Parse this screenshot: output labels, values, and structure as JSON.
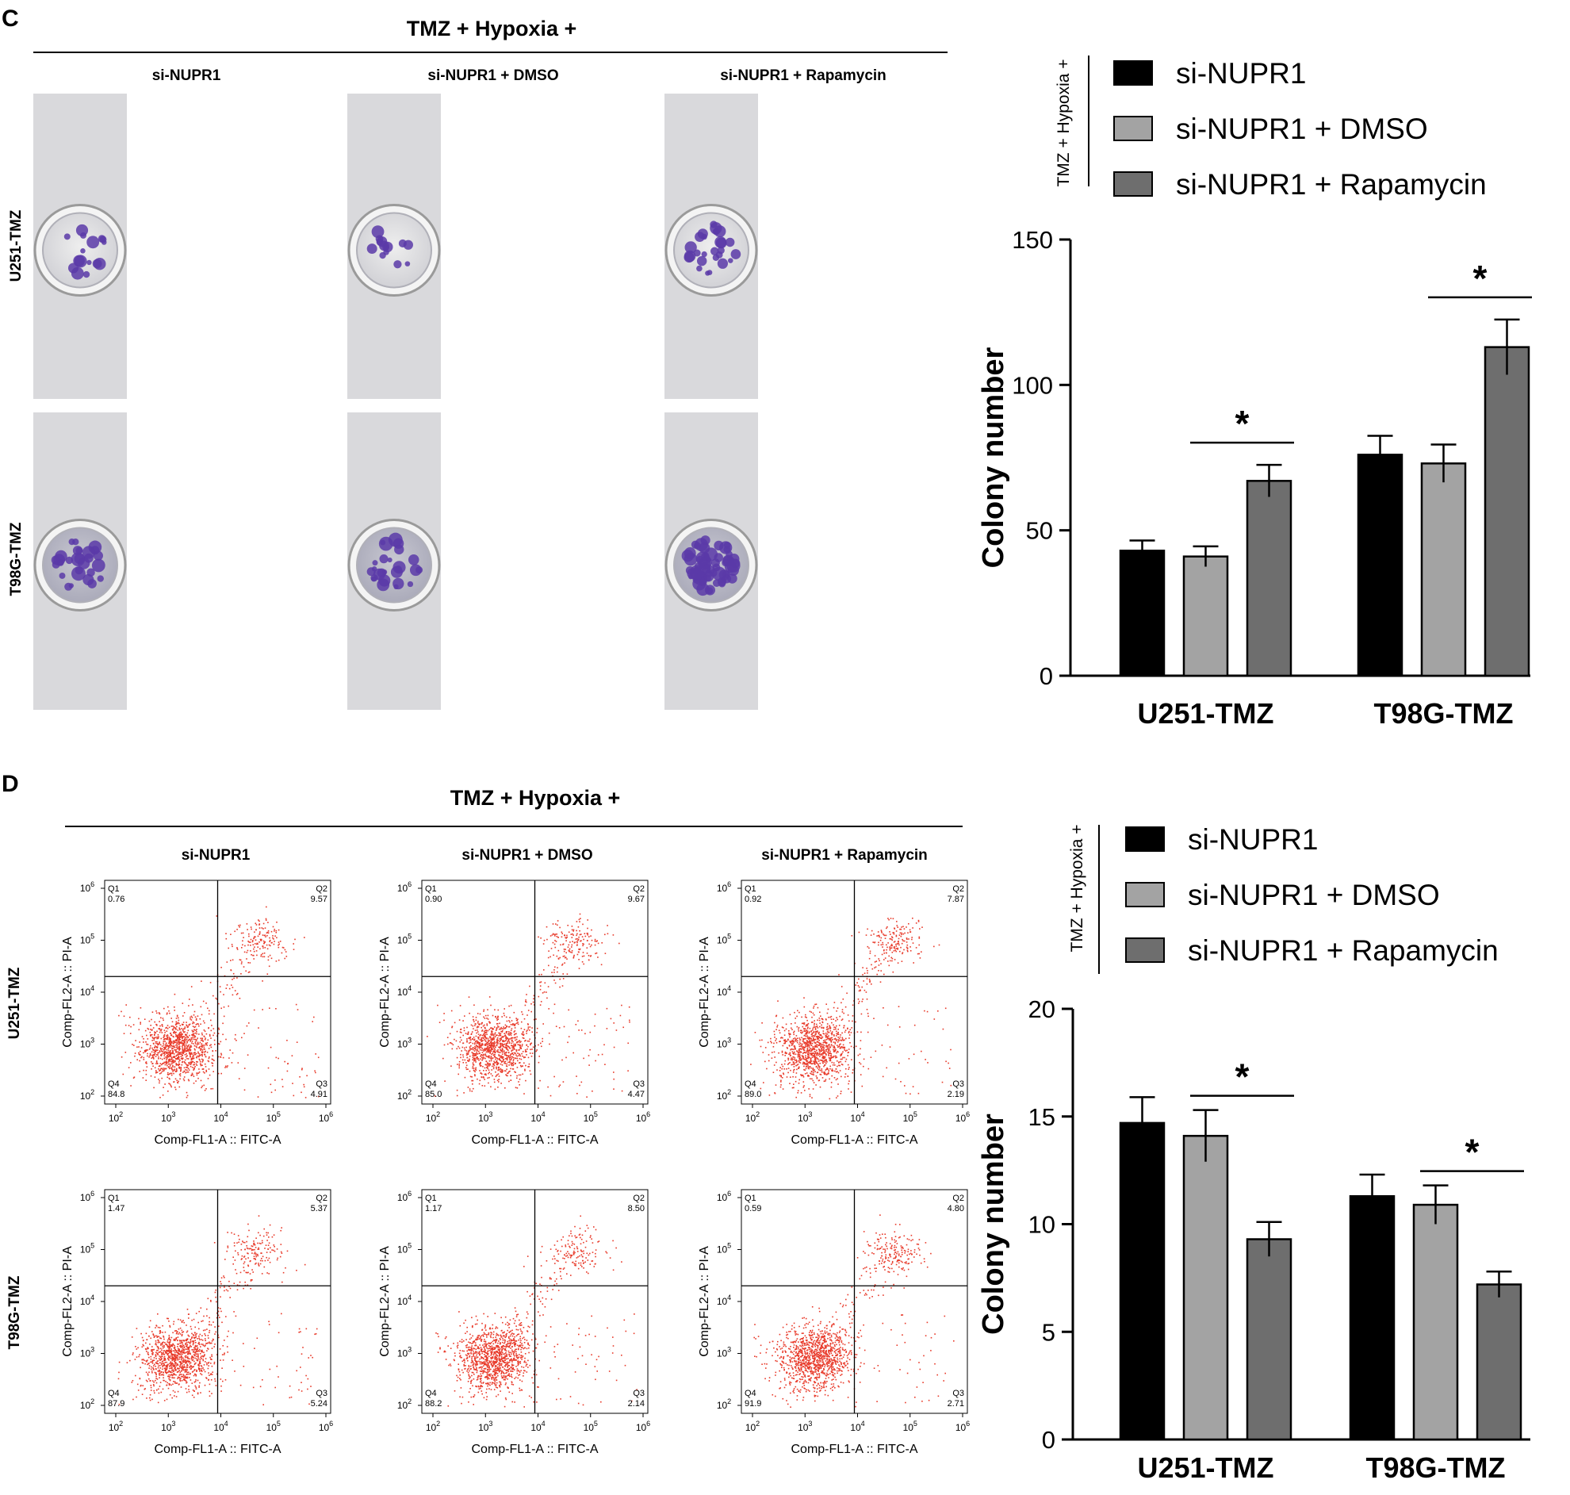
{
  "panelC": {
    "letter": "C",
    "header": "TMZ + Hypoxia +",
    "columns": [
      "si-NUPR1",
      "si-NUPR1 + DMSO",
      "si-NUPR1 + Rapamycin"
    ],
    "rows": [
      "U251-TMZ",
      "T98G-TMZ"
    ]
  },
  "panelD": {
    "letter": "D",
    "header": "TMZ + Hypoxia +",
    "columns": [
      "si-NUPR1",
      "si-NUPR1 + DMSO",
      "si-NUPR1 + Rapamycin"
    ],
    "rows": [
      "U251-TMZ",
      "T98G-TMZ"
    ],
    "flow": {
      "xlabel": "Comp-FL1-A :: FITC-A",
      "ylabel": "Comp-FL2-A :: PI-A",
      "quadrant_names": [
        "Q1",
        "Q2",
        "Q3",
        "Q4"
      ],
      "plots": [
        {
          "q1": "0.76",
          "q2": "9.57",
          "q3": "4.91",
          "q4": "84.8"
        },
        {
          "q1": "0.90",
          "q2": "9.67",
          "q3": "4.47",
          "q4": "85.0"
        },
        {
          "q1": "0.92",
          "q2": "7.87",
          "q3": "2.19",
          "q4": "89.0"
        },
        {
          "q1": "1.47",
          "q2": "5.37",
          "q3": "5.24",
          "q4": "87.9"
        },
        {
          "q1": "1.17",
          "q2": "8.50",
          "q3": "2.14",
          "q4": "88.2"
        },
        {
          "q1": "0.59",
          "q2": "4.80",
          "q3": "2.71",
          "q4": "91.9"
        }
      ],
      "tick_base": "10",
      "tick_exponents": [
        "2",
        "3",
        "4",
        "5",
        "6"
      ]
    }
  },
  "colors": {
    "series": [
      "#000000",
      "#a3a3a3",
      "#6e6e6e"
    ],
    "dot": "#e83a2a",
    "colony": "#5a3aa8"
  },
  "chart_data": [
    {
      "type": "bar",
      "title": "",
      "legend_title": "TMZ + Hypoxia +",
      "xlabel": "",
      "ylabel": "Colony number",
      "categories": [
        "U251-TMZ",
        "T98G-TMZ"
      ],
      "series": [
        {
          "name": "si-NUPR1",
          "values": [
            43,
            76
          ],
          "errors": [
            3.5,
            6.5
          ]
        },
        {
          "name": "si-NUPR1 + DMSO",
          "values": [
            41,
            73
          ],
          "errors": [
            3.5,
            6.5
          ]
        },
        {
          "name": "si-NUPR1 + Rapamycin",
          "values": [
            67,
            113
          ],
          "errors": [
            5.5,
            9.5
          ]
        }
      ],
      "ylim": [
        0,
        150
      ],
      "yticks": [
        0,
        50,
        100,
        150
      ],
      "significance": [
        {
          "category": 0,
          "from": 1,
          "to": 2,
          "label": "*"
        },
        {
          "category": 1,
          "from": 1,
          "to": 2,
          "label": "*"
        }
      ]
    },
    {
      "type": "bar",
      "title": "",
      "legend_title": "TMZ + Hypoxia +",
      "xlabel": "",
      "ylabel": "Colony number",
      "categories": [
        "U251-TMZ",
        "T98G-TMZ"
      ],
      "series": [
        {
          "name": "si-NUPR1",
          "values": [
            14.7,
            11.3
          ],
          "errors": [
            1.2,
            1.0
          ]
        },
        {
          "name": "si-NUPR1 + DMSO",
          "values": [
            14.1,
            10.9
          ],
          "errors": [
            1.2,
            0.9
          ]
        },
        {
          "name": "si-NUPR1 + Rapamycin",
          "values": [
            9.3,
            7.2
          ],
          "errors": [
            0.8,
            0.6
          ]
        }
      ],
      "ylim": [
        0,
        20
      ],
      "yticks": [
        0,
        5,
        10,
        15,
        20
      ],
      "significance": [
        {
          "category": 0,
          "from": 1,
          "to": 2,
          "label": "*"
        },
        {
          "category": 1,
          "from": 1,
          "to": 2,
          "label": "*"
        }
      ]
    }
  ]
}
